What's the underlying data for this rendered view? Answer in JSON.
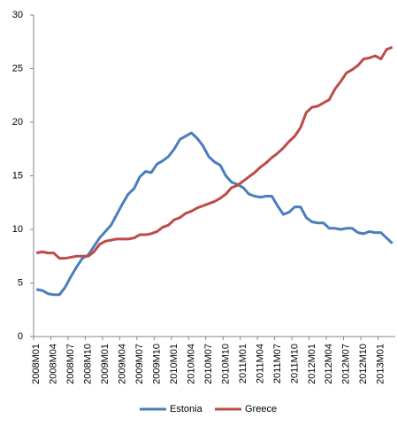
{
  "chart_data": {
    "type": "line",
    "categories": [
      "2008M01",
      null,
      null,
      "2008M04",
      null,
      null,
      "2008M07",
      null,
      null,
      "2008M10",
      null,
      null,
      "2009M01",
      null,
      null,
      "2009M04",
      null,
      null,
      "2009M07",
      null,
      null,
      "2009M10",
      null,
      null,
      "2010M01",
      null,
      null,
      "2010M04",
      null,
      null,
      "2010M07",
      null,
      null,
      "2010M10",
      null,
      null,
      "2011M01",
      null,
      null,
      "2011M04",
      null,
      null,
      "2011M07",
      null,
      null,
      "2011M10",
      null,
      null,
      "2012M01",
      null,
      null,
      "2012M04",
      null,
      null,
      "2012M07",
      null,
      null,
      "2012M10",
      null,
      null,
      "2013M01",
      null,
      null
    ],
    "series": [
      {
        "name": "Estonia",
        "color": "#4a7ebb",
        "values": [
          4.4,
          4.3,
          4.0,
          3.9,
          3.9,
          4.6,
          5.6,
          6.5,
          7.3,
          7.6,
          8.4,
          9.2,
          9.8,
          10.4,
          11.4,
          12.4,
          13.3,
          13.8,
          14.9,
          15.4,
          15.3,
          16.1,
          16.4,
          16.8,
          17.5,
          18.4,
          18.7,
          19.0,
          18.5,
          17.8,
          16.8,
          16.3,
          16.0,
          15.0,
          14.4,
          14.2,
          13.9,
          13.3,
          13.1,
          13.0,
          13.1,
          13.1,
          12.2,
          11.4,
          11.6,
          12.1,
          12.1,
          11.1,
          10.7,
          10.6,
          10.6,
          10.1,
          10.1,
          10.0,
          10.1,
          10.1,
          9.7,
          9.6,
          9.8,
          9.7,
          9.7,
          9.2,
          8.7
        ]
      },
      {
        "name": "Greece",
        "color": "#be4b48",
        "values": [
          7.8,
          7.9,
          7.8,
          7.8,
          7.3,
          7.3,
          7.4,
          7.5,
          7.5,
          7.5,
          7.9,
          8.6,
          8.9,
          9.0,
          9.1,
          9.1,
          9.1,
          9.2,
          9.5,
          9.5,
          9.6,
          9.8,
          10.2,
          10.4,
          10.9,
          11.1,
          11.5,
          11.7,
          12.0,
          12.2,
          12.4,
          12.6,
          12.9,
          13.3,
          13.9,
          14.1,
          14.5,
          14.9,
          15.3,
          15.8,
          16.2,
          16.7,
          17.1,
          17.6,
          18.2,
          18.7,
          19.5,
          20.9,
          21.4,
          21.5,
          21.8,
          22.1,
          23.1,
          23.8,
          24.6,
          24.9,
          25.3,
          25.9,
          26.0,
          26.2,
          25.9,
          26.8,
          27.0
        ]
      }
    ],
    "ylim": [
      0,
      30
    ],
    "yticks": [
      0,
      5,
      10,
      15,
      20,
      25,
      30
    ],
    "grid": false,
    "legend": "bottom"
  }
}
